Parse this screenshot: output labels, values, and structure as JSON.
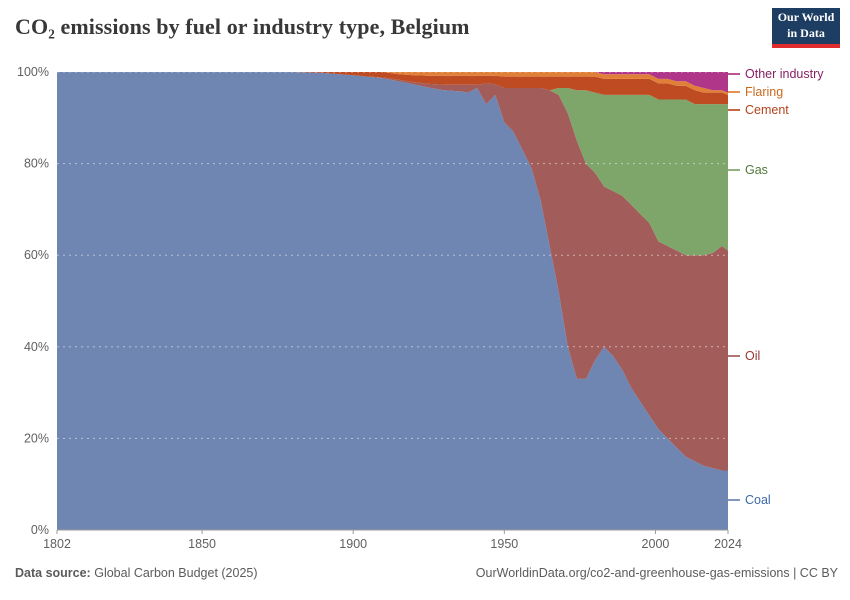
{
  "header": {
    "title": "CO₂ emissions by fuel or industry type, Belgium",
    "logo": {
      "line1": "Our World",
      "line2": "in Data",
      "bg_color": "#1d3d63",
      "accent_color": "#e02c2c"
    }
  },
  "chart_data": {
    "type": "area",
    "stacked": "percent",
    "title": "CO₂ emissions by fuel or industry type, Belgium",
    "xlabel": "",
    "ylabel": "",
    "xlim": [
      1802,
      2024
    ],
    "ylim": [
      0,
      100
    ],
    "grid": true,
    "legend_position": "right",
    "xticks": {
      "values": [
        1802,
        1850,
        1900,
        1950,
        2000,
        2024
      ],
      "labels": [
        "1802",
        "1850",
        "1900",
        "1950",
        "2000",
        "2024"
      ]
    },
    "yticks": {
      "values": [
        0,
        20,
        40,
        60,
        80,
        100
      ],
      "labels": [
        "0%",
        "20%",
        "40%",
        "60%",
        "80%",
        "100%"
      ]
    },
    "years": [
      1802,
      1810,
      1820,
      1830,
      1840,
      1850,
      1860,
      1870,
      1880,
      1890,
      1900,
      1905,
      1910,
      1915,
      1920,
      1925,
      1930,
      1935,
      1938,
      1941,
      1944,
      1947,
      1950,
      1953,
      1956,
      1959,
      1962,
      1965,
      1968,
      1971,
      1974,
      1977,
      1980,
      1983,
      1986,
      1989,
      1992,
      1995,
      1998,
      2001,
      2004,
      2007,
      2010,
      2013,
      2016,
      2019,
      2022,
      2024
    ],
    "series": [
      {
        "id": "coal",
        "name": "Coal",
        "color": "#6f85b2",
        "label_color": "#3c6aa6",
        "values": [
          100,
          100,
          100,
          100,
          100,
          100,
          100,
          100,
          100,
          99.8,
          99.3,
          99,
          98.6,
          98,
          97.3,
          96.6,
          96,
          95.8,
          95.5,
          96.5,
          93,
          95,
          89,
          87,
          83,
          79,
          72,
          62,
          52,
          40,
          33,
          33,
          37,
          40,
          38,
          35,
          31,
          28,
          25,
          22,
          20,
          18,
          16,
          15,
          14,
          13.5,
          13,
          13
        ]
      },
      {
        "id": "oil",
        "name": "Oil",
        "color": "#a25c5a",
        "label_color": "#963939",
        "values": [
          0,
          0,
          0,
          0,
          0,
          0,
          0,
          0,
          0,
          0,
          0,
          0,
          0.2,
          0.3,
          0.5,
          0.8,
          1.2,
          1.4,
          1.7,
          0.7,
          4.5,
          2.3,
          7.5,
          9.5,
          13.5,
          17.5,
          24.5,
          34,
          43,
          51,
          52,
          47,
          41,
          35,
          36,
          38,
          40,
          41,
          42,
          41,
          42,
          43,
          44,
          45,
          46,
          47,
          49,
          48
        ]
      },
      {
        "id": "gas",
        "name": "Gas",
        "color": "#7ea56a",
        "label_color": "#50793b",
        "values": [
          0,
          0,
          0,
          0,
          0,
          0,
          0,
          0,
          0,
          0,
          0,
          0,
          0,
          0,
          0,
          0,
          0,
          0,
          0,
          0,
          0,
          0,
          0,
          0,
          0,
          0,
          0,
          0,
          1.5,
          5.5,
          11,
          16,
          17.5,
          20,
          21,
          22,
          24,
          26,
          28,
          31,
          32,
          33,
          34,
          33,
          33,
          32.5,
          31,
          32
        ]
      },
      {
        "id": "cement",
        "name": "Cement",
        "color": "#bf4b23",
        "label_color": "#b5431a",
        "values": [
          0,
          0,
          0,
          0,
          0,
          0,
          0,
          0,
          0,
          0.2,
          0.7,
          1,
          1.2,
          1.2,
          1.5,
          1.8,
          2,
          2,
          2,
          2,
          1.7,
          1.9,
          2.5,
          2.5,
          2.5,
          2.5,
          2.5,
          3,
          2.5,
          2.5,
          3,
          3,
          3.5,
          3.5,
          3.5,
          3.5,
          3.5,
          3.5,
          3.5,
          3.5,
          3.5,
          3,
          3,
          3,
          2.5,
          2.5,
          2.5,
          2
        ]
      },
      {
        "id": "flaring",
        "name": "Flaring",
        "color": "#e07f38",
        "label_color": "#c96b1d",
        "values": [
          0,
          0,
          0,
          0,
          0,
          0,
          0,
          0,
          0,
          0,
          0,
          0,
          0,
          0.5,
          0.7,
          0.8,
          0.8,
          0.8,
          0.8,
          0.8,
          0.8,
          0.8,
          1,
          1,
          1,
          1,
          1,
          1,
          1,
          1,
          1,
          1,
          1,
          1,
          1,
          1,
          1,
          1,
          1,
          1,
          1,
          1,
          1,
          1,
          1,
          0.5,
          0.5,
          0.5
        ]
      },
      {
        "id": "other_industry",
        "name": "Other industry",
        "color": "#b0368a",
        "label_color": "#8a2065",
        "values": [
          0,
          0,
          0,
          0,
          0,
          0,
          0,
          0,
          0,
          0,
          0,
          0,
          0,
          0,
          0,
          0,
          0,
          0,
          0,
          0,
          0,
          0,
          0,
          0,
          0,
          0,
          0,
          0,
          0,
          0,
          0,
          0,
          0,
          0.5,
          0.5,
          0.5,
          0.5,
          0.5,
          0.5,
          1.5,
          1.5,
          2,
          2,
          3,
          3.5,
          4,
          4,
          4.5
        ]
      }
    ]
  },
  "footer": {
    "source_label": "Data source:",
    "source_value": "Global Carbon Budget (2025)",
    "credit": "OurWorldinData.org/co2-and-greenhouse-gas-emissions | CC BY"
  }
}
